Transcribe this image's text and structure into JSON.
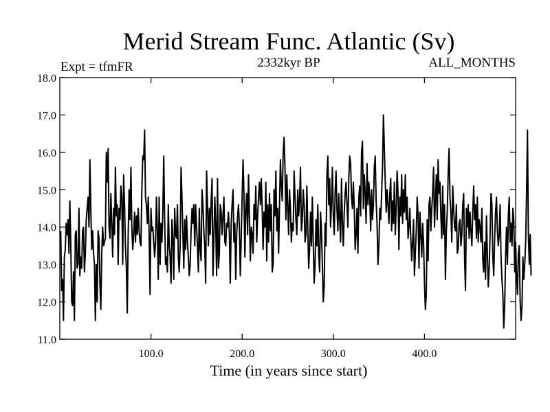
{
  "chart_data": {
    "type": "line",
    "title": "Merid Stream Func. Atlantic (Sv)",
    "subtitle_left": "Expt = tfmFR",
    "subtitle_center": "2332kyr BP",
    "subtitle_right": "ALL_MONTHS",
    "xlabel": "Time (in years since start)",
    "ylabel": "",
    "xlim": [
      0,
      500
    ],
    "ylim": [
      11.0,
      18.0
    ],
    "x_ticks": [
      100,
      200,
      300,
      400
    ],
    "x_tick_labels": [
      "100.0",
      "200.0",
      "300.0",
      "400.0"
    ],
    "y_ticks": [
      11.0,
      12.0,
      13.0,
      14.0,
      15.0,
      16.0,
      17.0,
      18.0
    ],
    "y_tick_labels": [
      "11.0",
      "12.0",
      "13.0",
      "14.0",
      "15.0",
      "16.0",
      "17.0",
      "18.0"
    ],
    "grid": false,
    "series": [
      {
        "name": "Merid Stream Func. Atlantic",
        "color": "#000000",
        "x_start": 1,
        "x_step": 1,
        "values": [
          13.9,
          12.3,
          12.6,
          11.5,
          13.2,
          13.4,
          14.1,
          13.8,
          14.2,
          13.3,
          14.7,
          13.6,
          12.0,
          11.9,
          12.8,
          11.5,
          13.8,
          13.9,
          12.9,
          13.0,
          14.5,
          12.7,
          13.2,
          12.9,
          13.9,
          14.0,
          12.8,
          13.3,
          14.2,
          14.5,
          14.8,
          14.0,
          15.8,
          14.5,
          13.4,
          13.9,
          13.3,
          13.0,
          11.5,
          13.0,
          12.0,
          13.9,
          13.7,
          12.5,
          11.8,
          13.3,
          14.0,
          13.5,
          13.6,
          13.7,
          16.0,
          15.2,
          16.1,
          14.0,
          13.7,
          14.9,
          14.1,
          13.2,
          14.5,
          13.8,
          15.6,
          14.3,
          14.6,
          13.0,
          14.5,
          14.2,
          15.1,
          14.8,
          13.0,
          15.4,
          14.6,
          13.5,
          12.9,
          11.7,
          13.8,
          15.0,
          14.2,
          15.6,
          14.0,
          13.4,
          13.8,
          14.4,
          13.6,
          14.3,
          13.8,
          14.5,
          13.9,
          13.6,
          13.5,
          15.0,
          15.9,
          15.8,
          16.6,
          14.8,
          14.6,
          14.1,
          14.8,
          13.8,
          12.2,
          14.5,
          13.9,
          14.0,
          13.6,
          13.2,
          13.6,
          14.8,
          13.9,
          12.6,
          14.8,
          13.0,
          14.1,
          13.6,
          14.4,
          15.9,
          14.2,
          13.0,
          13.2,
          12.8,
          14.6,
          13.5,
          13.2,
          12.5,
          14.2,
          13.7,
          12.6,
          14.5,
          13.8,
          13.7,
          14.6,
          13.2,
          12.8,
          13.5,
          15.6,
          14.8,
          13.8,
          12.9,
          14.2,
          13.4,
          14.3,
          13.6,
          13.2,
          12.7,
          13.0,
          13.9,
          14.5,
          14.1,
          14.6,
          13.5,
          14.6,
          14.0,
          13.5,
          12.8,
          14.5,
          13.4,
          13.1,
          15.0,
          14.6,
          13.9,
          13.5,
          12.5,
          15.5,
          14.6,
          13.5,
          14.5,
          13.8,
          14.7,
          15.3,
          12.7,
          13.7,
          14.8,
          14.1,
          12.7,
          15.3,
          12.9,
          13.3,
          14.6,
          14.4,
          13.8,
          14.3,
          14.8,
          13.6,
          13.5,
          14.1,
          14.0,
          14.4,
          13.8,
          12.5,
          14.1,
          14.6,
          15.0,
          13.6,
          14.1,
          12.6,
          13.8,
          14.3,
          14.6,
          14.0,
          12.7,
          13.7,
          14.8,
          15.8,
          14.9,
          13.2,
          14.5,
          14.9,
          13.8,
          15.4,
          14.3,
          13.1,
          14.0,
          13.8,
          13.3,
          14.6,
          14.2,
          15.1,
          13.6,
          14.3,
          14.8,
          15.2,
          14.6,
          15.3,
          14.5,
          13.4,
          14.4,
          14.0,
          15.2,
          13.1,
          14.6,
          13.6,
          14.9,
          13.9,
          14.6,
          12.8,
          13.0,
          15.0,
          14.3,
          15.5,
          13.9,
          14.5,
          13.3,
          14.6,
          15.8,
          15.1,
          14.7,
          16.0,
          16.4,
          15.6,
          14.2,
          15.4,
          14.6,
          13.8,
          15.0,
          14.5,
          13.6,
          14.1,
          13.9,
          15.5,
          14.8,
          14.2,
          13.8,
          15.0,
          14.3,
          14.7,
          15.6,
          13.9,
          14.2,
          15.0,
          14.6,
          13.6,
          13.8,
          15.1,
          14.0,
          12.9,
          13.4,
          14.4,
          13.5,
          14.8,
          13.6,
          12.5,
          13.0,
          14.2,
          13.5,
          14.6,
          13.3,
          12.8,
          14.4,
          13.9,
          13.0,
          12.0,
          12.4,
          14.1,
          13.5,
          15.4,
          15.9,
          14.6,
          15.3,
          14.0,
          14.6,
          15.6,
          14.3,
          13.8,
          14.9,
          15.5,
          14.5,
          13.9,
          14.9,
          14.2,
          13.6,
          15.3,
          14.1,
          13.5,
          14.4,
          14.9,
          15.2,
          14.6,
          14.0,
          15.3,
          15.9,
          15.7,
          14.8,
          14.5,
          15.2,
          14.5,
          13.4,
          13.8,
          14.5,
          13.3,
          14.8,
          15.1,
          14.3,
          16.0,
          16.3,
          14.5,
          15.4,
          14.9,
          14.1,
          15.7,
          14.6,
          15.2,
          14.8,
          13.9,
          15.0,
          14.2,
          14.6,
          15.6,
          15.9,
          14.7,
          14.1,
          13.0,
          13.5,
          14.5,
          14.2,
          14.9,
          15.6,
          17.0,
          16.1,
          15.2,
          14.4,
          15.0,
          14.6,
          14.1,
          14.9,
          15.3,
          13.9,
          14.7,
          14.1,
          15.2,
          13.8,
          14.5,
          15.5,
          14.9,
          13.4,
          14.8,
          14.3,
          15.4,
          14.1,
          15.0,
          14.4,
          15.4,
          14.2,
          14.8,
          13.7,
          14.0,
          14.5,
          13.7,
          13.1,
          13.6,
          14.2,
          12.7,
          13.3,
          13.9,
          14.8,
          14.3,
          12.9,
          14.4,
          13.8,
          13.2,
          14.1,
          13.6,
          12.5,
          11.8,
          12.2,
          14.2,
          13.1,
          14.6,
          14.8,
          13.9,
          14.5,
          14.9,
          15.6,
          14.0,
          14.7,
          15.4,
          14.2,
          15.8,
          14.9,
          15.2,
          14.3,
          13.7,
          15.1,
          13.8,
          14.6,
          12.6,
          13.9,
          14.4,
          15.4,
          16.1,
          14.8,
          14.4,
          13.6,
          15.1,
          14.5,
          14.0,
          13.9,
          14.6,
          13.3,
          13.4,
          14.1,
          14.2,
          13.5,
          13.8,
          14.6,
          14.9,
          13.2,
          12.3,
          14.5,
          14.0,
          14.6,
          13.7,
          14.4,
          13.9,
          13.5,
          14.4,
          15.1,
          14.2,
          14.6,
          13.7,
          14.8,
          13.6,
          14.2,
          14.0,
          13.6,
          14.5,
          13.1,
          12.8,
          13.6,
          12.6,
          14.3,
          13.3,
          12.4,
          12.9,
          13.8,
          14.9,
          14.6,
          13.2,
          12.7,
          13.7,
          14.4,
          14.8,
          13.9,
          13.5,
          13.8,
          14.6,
          13.2,
          12.6,
          12.2,
          11.3,
          11.9,
          13.2,
          14.0,
          13.0,
          14.3,
          14.8,
          13.6,
          14.1,
          13.5,
          14.5,
          14.2,
          12.8,
          13.6,
          12.7,
          12.2,
          13.3,
          13.5,
          12.0,
          11.5,
          11.9,
          13.2,
          12.6,
          13.0,
          13.6,
          14.9,
          16.6,
          13.8,
          13.0,
          13.8,
          12.7
        ]
      }
    ]
  }
}
